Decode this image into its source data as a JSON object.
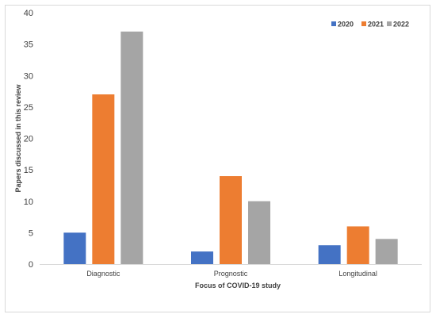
{
  "chart_data": {
    "type": "bar",
    "title": "",
    "xlabel": "Focus of COVID-19 study",
    "ylabel": "Papers discussed in this review",
    "categories": [
      "Diagnostic",
      "Prognostic",
      "Longitudinal"
    ],
    "series": [
      {
        "name": "2020",
        "color": "#4472c4",
        "values": [
          5,
          2,
          3
        ]
      },
      {
        "name": "2021",
        "color": "#ed7d31",
        "values": [
          27,
          14,
          6
        ]
      },
      {
        "name": "2022",
        "color": "#a5a5a5",
        "values": [
          37,
          10,
          4
        ]
      }
    ],
    "ylim": [
      0,
      40
    ],
    "yticks": [
      0,
      5,
      10,
      15,
      20,
      25,
      30,
      35,
      40
    ],
    "grid": false,
    "legend_position": "top-right"
  }
}
